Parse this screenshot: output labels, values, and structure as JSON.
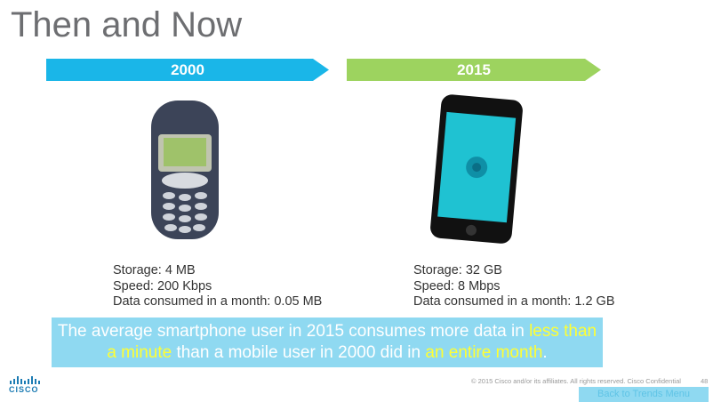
{
  "title": "Then and Now",
  "columns": [
    {
      "year": "2000",
      "specs": [
        "Storage: 4 MB",
        "Speed: 200 Kbps",
        "Data consumed in a month: 0.05 MB"
      ]
    },
    {
      "year": "2015",
      "specs": [
        "Storage: 32 GB",
        "Speed: 8 Mbps",
        "Data consumed in a month: 1.2 GB"
      ]
    }
  ],
  "callout": {
    "segments": [
      {
        "text": "The average smartphone user in 2015 consumes more data in ",
        "highlight": false
      },
      {
        "text": "less than a minute",
        "highlight": true
      },
      {
        "text": " than a mobile user in 2000 did in ",
        "highlight": false
      },
      {
        "text": "an entire month",
        "highlight": true
      },
      {
        "text": ".",
        "highlight": false
      }
    ]
  },
  "footer": {
    "logo": "CISCO",
    "copyright": "© 2015  Cisco and/or its affiliates. All rights reserved.   Cisco Confidential",
    "page": "48"
  },
  "button": "Back to Trends Menu"
}
